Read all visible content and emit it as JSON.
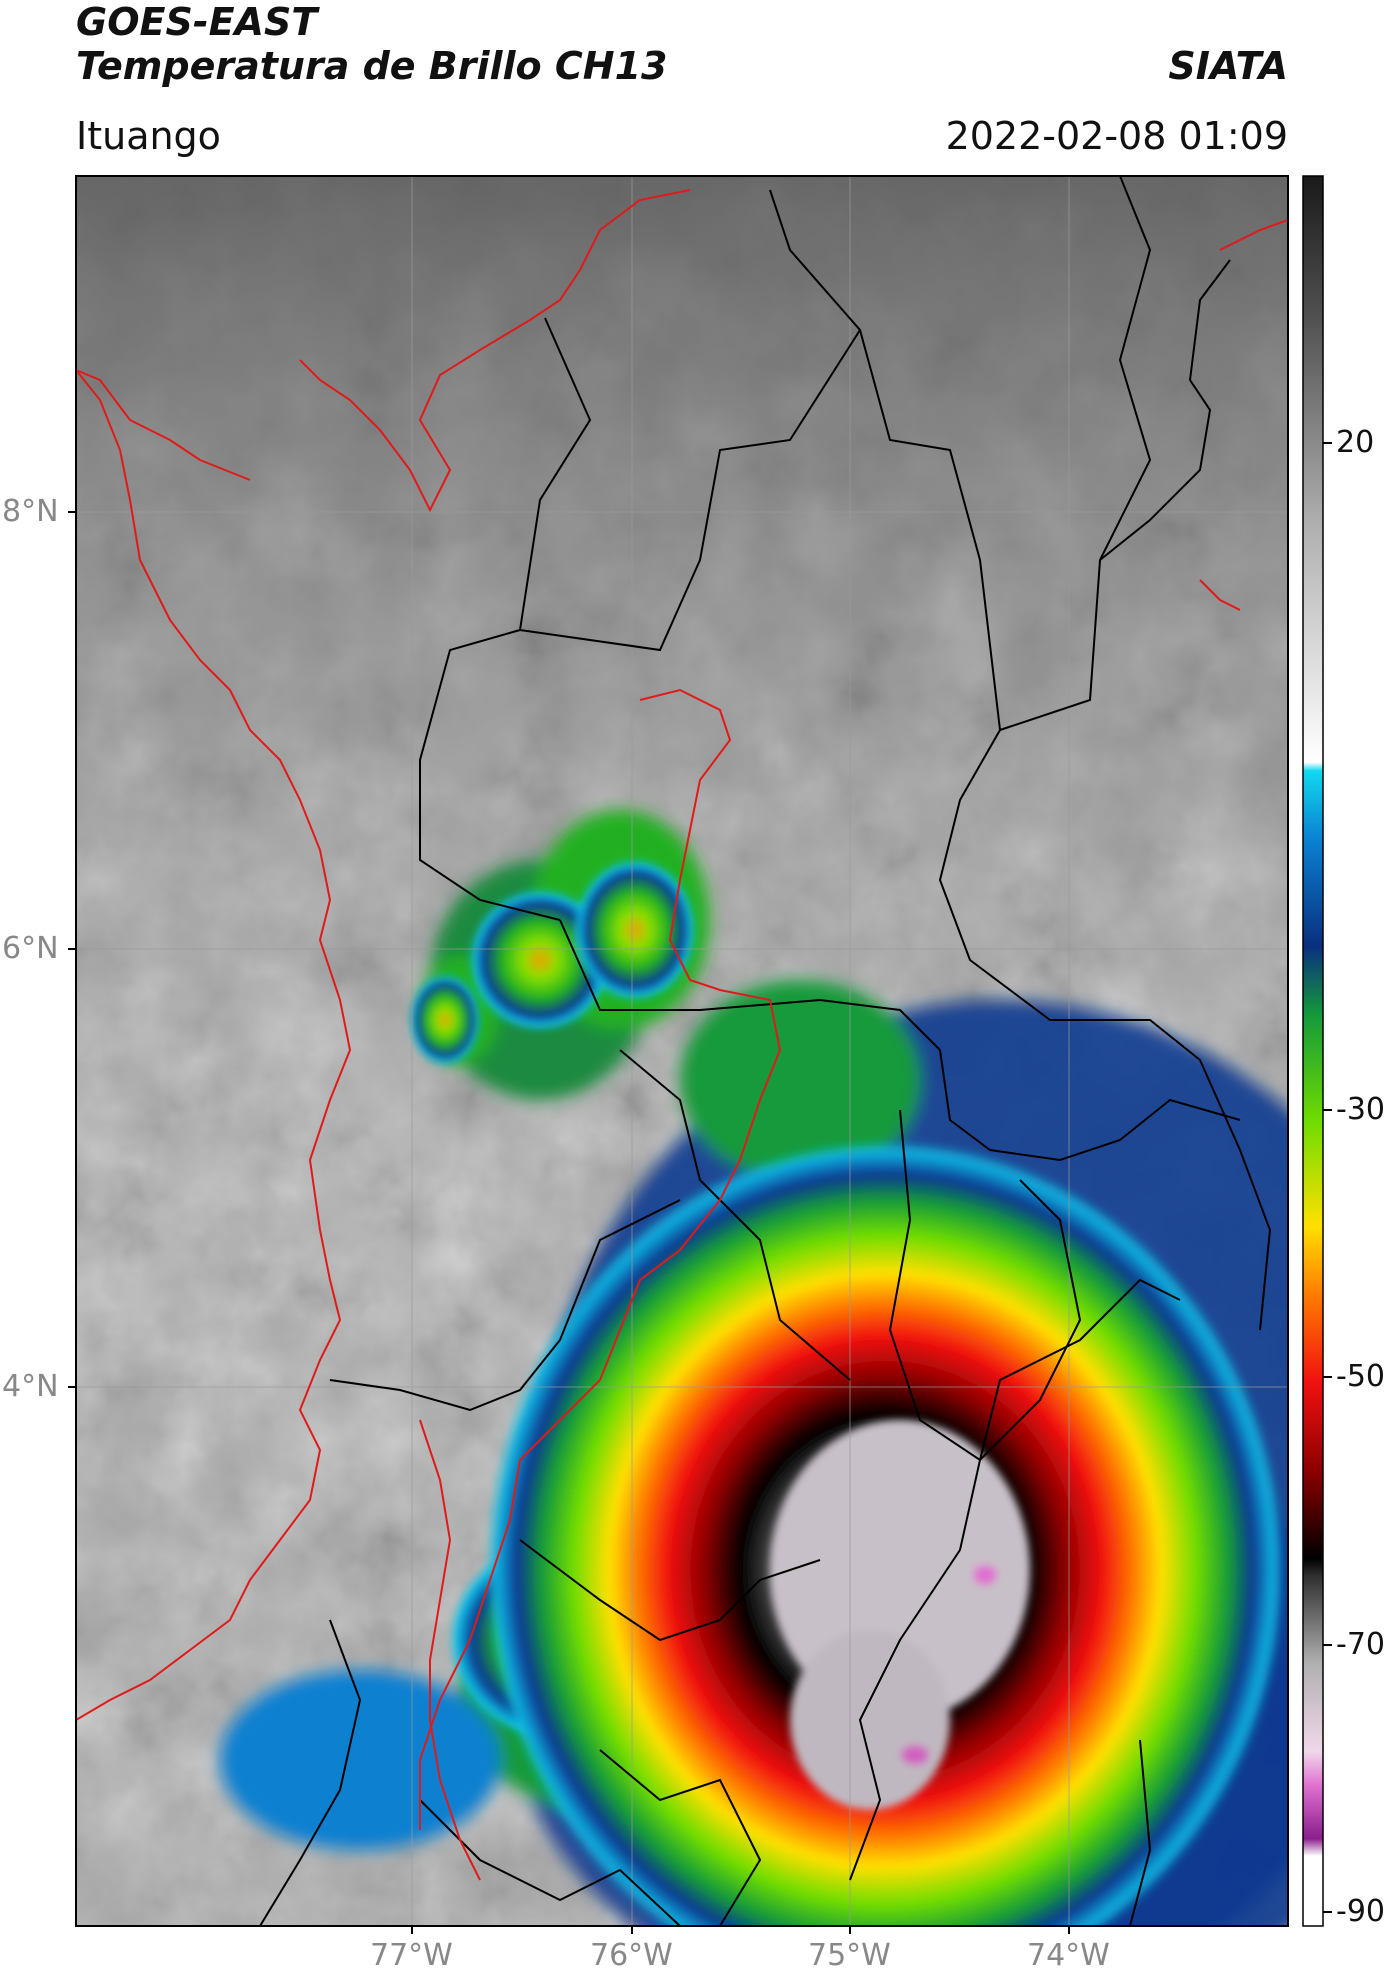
{
  "header": {
    "satellite": "GOES-EAST",
    "product": "Temperatura de Brillo CH13",
    "agency": "SIATA",
    "region": "Ituango",
    "timestamp": "2022-02-08 01:09"
  },
  "map": {
    "lat_ticks": [
      "8°N",
      "6°N",
      "4°N"
    ],
    "lon_ticks": [
      "77°W",
      "76°W",
      "75°W",
      "74°W"
    ],
    "extent": {
      "lon_min": -78.55,
      "lon_max": -73.0,
      "lat_min": 2.35,
      "lat_max": 9.55
    }
  },
  "colorbar": {
    "ticks": [
      "20",
      "-30",
      "-50",
      "-70",
      "-90"
    ],
    "range": [
      -93,
      48
    ],
    "palette": [
      {
        "stop": 0.0,
        "color": "#ffffff"
      },
      {
        "stop": 0.04,
        "color": "#ffffff"
      },
      {
        "stop": 0.05,
        "color": "#8a1f8c"
      },
      {
        "stop": 0.08,
        "color": "#e070d0"
      },
      {
        "stop": 0.1,
        "color": "#f0d8ea"
      },
      {
        "stop": 0.15,
        "color": "#b0b0b0"
      },
      {
        "stop": 0.2,
        "color": "#303030"
      },
      {
        "stop": 0.21,
        "color": "#000000"
      },
      {
        "stop": 0.26,
        "color": "#8c0000"
      },
      {
        "stop": 0.31,
        "color": "#f01010"
      },
      {
        "stop": 0.36,
        "color": "#ff7a00"
      },
      {
        "stop": 0.4,
        "color": "#ffe000"
      },
      {
        "stop": 0.46,
        "color": "#6fdc00"
      },
      {
        "stop": 0.52,
        "color": "#159a3a"
      },
      {
        "stop": 0.56,
        "color": "#0a2f80"
      },
      {
        "stop": 0.62,
        "color": "#0a80d0"
      },
      {
        "stop": 0.66,
        "color": "#10d8f0"
      },
      {
        "stop": 0.665,
        "color": "#ffffff"
      },
      {
        "stop": 0.8,
        "color": "#b0b0b0"
      },
      {
        "stop": 0.92,
        "color": "#505050"
      },
      {
        "stop": 1.0,
        "color": "#1a1a1a"
      }
    ]
  }
}
